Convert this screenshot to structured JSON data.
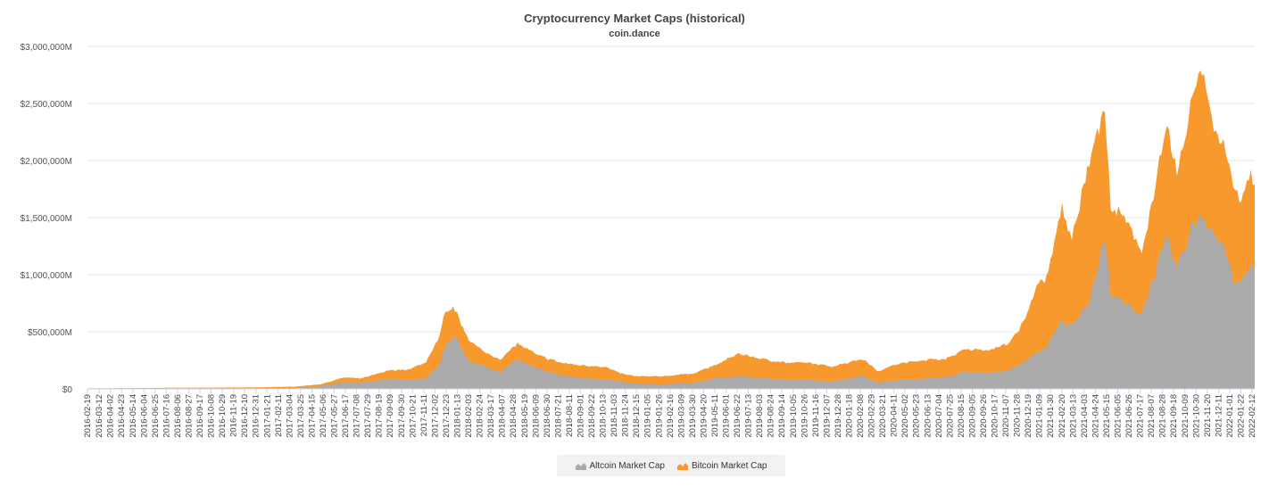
{
  "chart_data": {
    "type": "area",
    "stacked": true,
    "title": "Cryptocurrency Market Caps (historical)",
    "subtitle": "coin.dance",
    "ylim": [
      0,
      3000000
    ],
    "y_unit": "M",
    "y_ticks": [
      {
        "value": 0,
        "label": "$0"
      },
      {
        "value": 500000,
        "label": "$500,000M"
      },
      {
        "value": 1000000,
        "label": "$1,000,000M"
      },
      {
        "value": 1500000,
        "label": "$1,500,000M"
      },
      {
        "value": 2000000,
        "label": "$2,000,000M"
      },
      {
        "value": 2500000,
        "label": "$2,500,000M"
      },
      {
        "value": 3000000,
        "label": "$3,000,000M"
      }
    ],
    "x_range": [
      "2016-02-19",
      "2022-02-17"
    ],
    "x_tick_labels": [
      "2016-02-19",
      "2016-03-12",
      "2016-04-02",
      "2016-04-23",
      "2016-05-14",
      "2016-06-04",
      "2016-06-25",
      "2016-07-16",
      "2016-08-06",
      "2016-08-27",
      "2016-09-17",
      "2016-10-08",
      "2016-10-29",
      "2016-11-19",
      "2016-12-10",
      "2016-12-31",
      "2017-01-21",
      "2017-02-11",
      "2017-03-04",
      "2017-03-25",
      "2017-04-15",
      "2017-05-06",
      "2017-05-27",
      "2017-06-17",
      "2017-07-08",
      "2017-07-29",
      "2017-08-19",
      "2017-09-09",
      "2017-09-30",
      "2017-10-21",
      "2017-11-11",
      "2017-12-02",
      "2017-12-23",
      "2018-01-13",
      "2018-02-03",
      "2018-02-24",
      "2018-03-17",
      "2018-04-07",
      "2018-04-28",
      "2018-05-19",
      "2018-06-09",
      "2018-06-30",
      "2018-07-21",
      "2018-08-11",
      "2018-09-01",
      "2018-09-22",
      "2018-10-13",
      "2018-11-03",
      "2018-11-24",
      "2018-12-15",
      "2019-01-05",
      "2019-01-26",
      "2019-02-16",
      "2019-03-09",
      "2019-03-30",
      "2019-04-20",
      "2019-05-11",
      "2019-06-01",
      "2019-06-22",
      "2019-07-13",
      "2019-08-03",
      "2019-08-24",
      "2019-09-14",
      "2019-10-05",
      "2019-10-26",
      "2019-11-16",
      "2019-12-07",
      "2019-12-28",
      "2020-01-18",
      "2020-02-08",
      "2020-02-29",
      "2020-03-21",
      "2020-04-11",
      "2020-05-02",
      "2020-05-23",
      "2020-06-13",
      "2020-07-04",
      "2020-07-25",
      "2020-08-15",
      "2020-09-05",
      "2020-09-26",
      "2020-10-17",
      "2020-11-07",
      "2020-11-28",
      "2020-12-19",
      "2021-01-09",
      "2021-01-30",
      "2021-02-20",
      "2021-03-13",
      "2021-04-03",
      "2021-04-24",
      "2021-05-15",
      "2021-06-05",
      "2021-06-26",
      "2021-07-17",
      "2021-08-07",
      "2021-08-28",
      "2021-09-18",
      "2021-10-09",
      "2021-10-30",
      "2021-11-20",
      "2021-12-11",
      "2022-01-01",
      "2022-01-22",
      "2022-02-12"
    ],
    "x": [
      "2016-02-19",
      "2016-06-01",
      "2016-10-01",
      "2017-01-01",
      "2017-03-15",
      "2017-05-01",
      "2017-06-15",
      "2017-07-15",
      "2017-08-15",
      "2017-09-10",
      "2017-10-15",
      "2017-11-15",
      "2017-12-10",
      "2017-12-20",
      "2018-01-07",
      "2018-01-15",
      "2018-02-06",
      "2018-03-01",
      "2018-04-05",
      "2018-05-05",
      "2018-06-10",
      "2018-07-25",
      "2018-08-25",
      "2018-10-15",
      "2018-11-20",
      "2018-12-15",
      "2019-02-01",
      "2019-04-01",
      "2019-05-15",
      "2019-06-26",
      "2019-08-15",
      "2019-10-01",
      "2019-11-01",
      "2019-12-15",
      "2020-02-13",
      "2020-03-12",
      "2020-04-15",
      "2020-06-01",
      "2020-07-25",
      "2020-08-20",
      "2020-10-05",
      "2020-11-10",
      "2020-12-10",
      "2021-01-08",
      "2021-01-25",
      "2021-02-20",
      "2021-03-10",
      "2021-04-15",
      "2021-05-11",
      "2021-05-23",
      "2021-06-15",
      "2021-07-20",
      "2021-08-20",
      "2021-09-06",
      "2021-09-25",
      "2021-10-20",
      "2021-11-09",
      "2021-12-04",
      "2021-12-26",
      "2022-01-10",
      "2022-01-24",
      "2022-02-10",
      "2022-02-17"
    ],
    "series": [
      {
        "name": "Altcoin Market Cap",
        "color": "#aaaaaa",
        "values": [
          1000,
          2000,
          3000,
          3000,
          8000,
          25000,
          60000,
          55000,
          70000,
          90000,
          75000,
          95000,
          200000,
          350000,
          470000,
          400000,
          240000,
          200000,
          150000,
          260000,
          180000,
          120000,
          100000,
          85000,
          60000,
          45000,
          40000,
          55000,
          95000,
          110000,
          95000,
          75000,
          80000,
          65000,
          115000,
          55000,
          75000,
          90000,
          110000,
          150000,
          140000,
          160000,
          230000,
          330000,
          380000,
          600000,
          550000,
          800000,
          1330000,
          850000,
          750000,
          660000,
          1100000,
          1300000,
          1050000,
          1400000,
          1550000,
          1350000,
          1200000,
          900000,
          950000,
          1100000,
          1020000
        ]
      },
      {
        "name": "Bitcoin Market Cap",
        "color": "#f7992d",
        "values": [
          4000,
          6000,
          8000,
          10000,
          12000,
          15000,
          40000,
          35000,
          60000,
          75000,
          95000,
          140000,
          250000,
          300000,
          250000,
          220000,
          180000,
          130000,
          110000,
          140000,
          120000,
          110000,
          110000,
          110000,
          70000,
          65000,
          70000,
          80000,
          120000,
          200000,
          160000,
          150000,
          150000,
          130000,
          150000,
          100000,
          140000,
          160000,
          160000,
          200000,
          200000,
          230000,
          350000,
          610000,
          600000,
          1000000,
          750000,
          1250000,
          1120000,
          750000,
          750000,
          550000,
          800000,
          1000000,
          800000,
          1100000,
          1300000,
          900000,
          900000,
          800000,
          700000,
          800000,
          700000
        ]
      }
    ]
  }
}
